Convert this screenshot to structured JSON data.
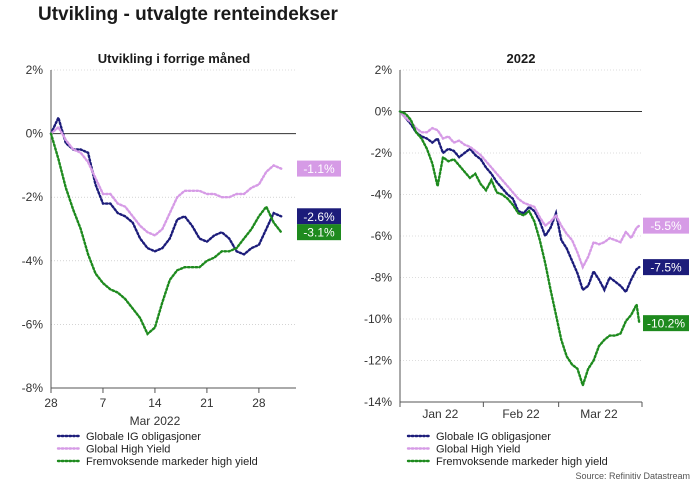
{
  "title": "Utvikling - utvalgte renteindekser",
  "source": "Source: Refinitiv Datastream",
  "colors": {
    "ig": "#1c1c7a",
    "hy": "#d69be6",
    "em": "#1e8a1e"
  },
  "chart_data": [
    {
      "type": "line",
      "title": "Utvikling i forrige måned",
      "ylim": [
        -8,
        2
      ],
      "yticks": [
        "2%",
        "0%",
        "-2%",
        "-4%",
        "-6%",
        "-8%"
      ],
      "ytick_values": [
        2,
        0,
        -2,
        -4,
        -6,
        -8
      ],
      "xlim": [
        0,
        33
      ],
      "xticks": [
        0,
        7,
        14,
        21,
        28
      ],
      "xtick_labels": [
        "28",
        "7",
        "14",
        "21",
        "28"
      ],
      "xlabel": "Mar 2022",
      "series": [
        {
          "name": "Globale IG obligasjoner",
          "color": "ig",
          "x": [
            0,
            1,
            2,
            3,
            4,
            5,
            6,
            7,
            8,
            9,
            10,
            11,
            12,
            13,
            14,
            15,
            16,
            17,
            18,
            19,
            20,
            21,
            22,
            23,
            24,
            25,
            26,
            27,
            28,
            29,
            30,
            31
          ],
          "values": [
            0.0,
            0.5,
            -0.3,
            -0.5,
            -0.5,
            -0.6,
            -1.6,
            -2.2,
            -2.2,
            -2.5,
            -2.6,
            -2.8,
            -3.3,
            -3.6,
            -3.7,
            -3.6,
            -3.3,
            -2.7,
            -2.6,
            -2.9,
            -3.3,
            -3.4,
            -3.2,
            -3.1,
            -3.3,
            -3.7,
            -3.8,
            -3.6,
            -3.5,
            -3.0,
            -2.5,
            -2.6
          ],
          "end_label": "-2.6%"
        },
        {
          "name": "Global High Yield",
          "color": "hy",
          "x": [
            0,
            1,
            2,
            3,
            4,
            5,
            6,
            7,
            8,
            9,
            10,
            11,
            12,
            13,
            14,
            15,
            16,
            17,
            18,
            19,
            20,
            21,
            22,
            23,
            24,
            25,
            26,
            27,
            28,
            29,
            30,
            31
          ],
          "values": [
            0.0,
            0.2,
            -0.2,
            -0.5,
            -0.6,
            -0.9,
            -1.4,
            -1.9,
            -1.9,
            -2.2,
            -2.3,
            -2.6,
            -2.9,
            -3.1,
            -3.2,
            -3.0,
            -2.5,
            -2.0,
            -1.8,
            -1.8,
            -1.8,
            -1.9,
            -1.9,
            -2.0,
            -2.0,
            -1.9,
            -1.9,
            -1.7,
            -1.6,
            -1.2,
            -1.0,
            -1.1
          ],
          "end_label": "-1.1%"
        },
        {
          "name": "Fremvoksende markeder high yield",
          "color": "em",
          "x": [
            0,
            1,
            2,
            3,
            4,
            5,
            6,
            7,
            8,
            9,
            10,
            11,
            12,
            13,
            14,
            15,
            16,
            17,
            18,
            19,
            20,
            21,
            22,
            23,
            24,
            25,
            26,
            27,
            28,
            29,
            30,
            31
          ],
          "values": [
            0.0,
            -0.8,
            -1.7,
            -2.4,
            -3.0,
            -3.8,
            -4.4,
            -4.7,
            -4.9,
            -5.0,
            -5.2,
            -5.5,
            -5.8,
            -6.3,
            -6.1,
            -5.3,
            -4.6,
            -4.3,
            -4.2,
            -4.2,
            -4.2,
            -4.0,
            -3.9,
            -3.7,
            -3.7,
            -3.6,
            -3.3,
            -3.0,
            -2.6,
            -2.3,
            -2.8,
            -3.1
          ],
          "end_label": "-3.1%"
        }
      ]
    },
    {
      "type": "line",
      "title": "2022",
      "ylim": [
        -14,
        2
      ],
      "yticks": [
        "2%",
        "0%",
        "-2%",
        "-4%",
        "-6%",
        "-8%",
        "-10%",
        "-12%",
        "-14%"
      ],
      "ytick_values": [
        2,
        0,
        -2,
        -4,
        -6,
        -8,
        -10,
        -12,
        -14
      ],
      "xlim": [
        0,
        90
      ],
      "xticks": [
        0,
        31,
        59,
        90
      ],
      "xtick_labels": [
        "",
        "",
        "",
        ""
      ],
      "xlabels_mid": [
        "Jan 22",
        "Feb 22",
        "Mar 22"
      ],
      "xlabels_mid_pos": [
        15,
        45,
        74
      ],
      "series": [
        {
          "name": "Globale IG obligasjoner",
          "color": "ig",
          "x": [
            0,
            2,
            4,
            6,
            8,
            10,
            12,
            14,
            16,
            18,
            20,
            22,
            24,
            26,
            28,
            30,
            32,
            34,
            36,
            38,
            40,
            42,
            44,
            46,
            48,
            50,
            52,
            54,
            56,
            58,
            60,
            62,
            64,
            66,
            68,
            70,
            72,
            74,
            76,
            78,
            80,
            82,
            84,
            86,
            88,
            89
          ],
          "values": [
            0.0,
            -0.3,
            -0.6,
            -1.0,
            -1.2,
            -1.3,
            -1.5,
            -1.3,
            -2.0,
            -1.8,
            -1.9,
            -2.2,
            -2.0,
            -1.8,
            -2.1,
            -2.3,
            -2.7,
            -3.0,
            -3.4,
            -3.7,
            -4.0,
            -4.2,
            -4.8,
            -4.9,
            -4.6,
            -4.8,
            -5.3,
            -6.0,
            -5.6,
            -4.9,
            -6.2,
            -6.6,
            -7.2,
            -7.8,
            -8.6,
            -8.4,
            -7.7,
            -8.1,
            -8.6,
            -8.0,
            -8.2,
            -8.4,
            -8.7,
            -8.1,
            -7.6,
            -7.5
          ],
          "end_label": "-7.5%"
        },
        {
          "name": "Global High Yield",
          "color": "hy",
          "x": [
            0,
            2,
            4,
            6,
            8,
            10,
            12,
            14,
            16,
            18,
            20,
            22,
            24,
            26,
            28,
            30,
            32,
            34,
            36,
            38,
            40,
            42,
            44,
            46,
            48,
            50,
            52,
            54,
            56,
            58,
            60,
            62,
            64,
            66,
            68,
            70,
            72,
            74,
            76,
            78,
            80,
            82,
            84,
            86,
            88,
            89
          ],
          "values": [
            0.0,
            -0.3,
            -0.5,
            -0.8,
            -1.0,
            -1.0,
            -0.8,
            -0.9,
            -1.3,
            -1.2,
            -1.5,
            -1.4,
            -1.6,
            -1.7,
            -1.9,
            -2.1,
            -2.4,
            -2.7,
            -3.0,
            -3.3,
            -3.6,
            -3.9,
            -4.2,
            -4.4,
            -4.5,
            -4.6,
            -5.1,
            -5.5,
            -5.3,
            -5.0,
            -5.5,
            -5.9,
            -6.2,
            -6.8,
            -7.5,
            -7.0,
            -6.3,
            -6.4,
            -6.3,
            -6.1,
            -6.2,
            -6.3,
            -5.8,
            -6.1,
            -5.6,
            -5.5
          ],
          "end_label": "-5.5%"
        },
        {
          "name": "Fremvoksende markeder high yield",
          "color": "em",
          "x": [
            0,
            2,
            4,
            6,
            8,
            10,
            12,
            14,
            16,
            18,
            20,
            22,
            24,
            26,
            28,
            30,
            32,
            34,
            36,
            38,
            40,
            42,
            44,
            46,
            48,
            50,
            52,
            54,
            56,
            58,
            60,
            62,
            64,
            66,
            68,
            70,
            72,
            74,
            76,
            78,
            80,
            82,
            84,
            86,
            88,
            89
          ],
          "values": [
            0.0,
            -0.1,
            -0.4,
            -1.0,
            -1.3,
            -1.8,
            -2.5,
            -3.6,
            -2.2,
            -2.4,
            -2.3,
            -2.6,
            -2.9,
            -3.2,
            -3.0,
            -3.5,
            -3.8,
            -3.3,
            -3.9,
            -4.0,
            -4.2,
            -4.5,
            -4.9,
            -5.0,
            -4.8,
            -5.3,
            -6.2,
            -7.3,
            -8.6,
            -9.8,
            -11.0,
            -11.8,
            -12.2,
            -12.4,
            -13.2,
            -12.4,
            -12.0,
            -11.3,
            -11.0,
            -10.8,
            -10.8,
            -10.7,
            -10.1,
            -9.8,
            -9.3,
            -10.2
          ],
          "end_label": "-10.2%"
        }
      ]
    }
  ]
}
